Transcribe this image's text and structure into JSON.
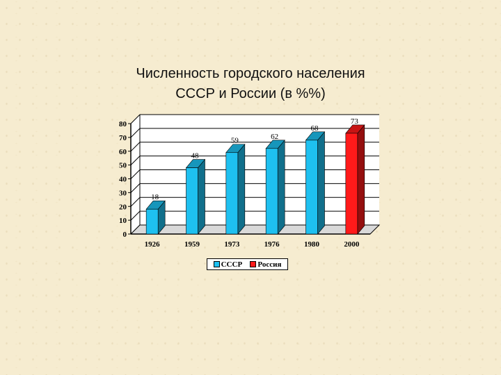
{
  "title": {
    "line1": "Численность городского населения",
    "line2": "СССР и России (в %%)"
  },
  "chart_data": {
    "type": "bar",
    "categories": [
      "1926",
      "1959",
      "1973",
      "1976",
      "1980",
      "2000"
    ],
    "values": [
      18,
      48,
      59,
      62,
      68,
      73
    ],
    "series_of_bar": [
      "СССР",
      "СССР",
      "СССР",
      "СССР",
      "СССР",
      "Россия"
    ],
    "data_labels": [
      "18",
      "48",
      "59",
      "62",
      "68",
      "73"
    ],
    "ylim": [
      0,
      80
    ],
    "yticks": [
      0,
      10,
      20,
      30,
      40,
      50,
      60,
      70,
      80
    ],
    "grid": true,
    "legend_position": "bottom",
    "series": [
      {
        "name": "СССР",
        "color": "#1ec0f0"
      },
      {
        "name": "Россия",
        "color": "#ff1a1a"
      }
    ],
    "style": "3d-bar"
  }
}
